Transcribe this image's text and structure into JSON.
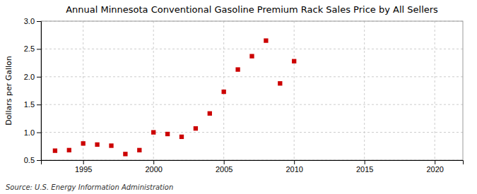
{
  "chart_data": {
    "type": "scatter",
    "title": "Annual Minnesota Conventional Gasoline Premium Rack Sales Price by All Sellers",
    "ylabel": "Dollars per Gallon",
    "source": "Source: U.S. Energy Information Administration",
    "x": [
      1993,
      1994,
      1995,
      1996,
      1997,
      1998,
      1999,
      2000,
      2001,
      2002,
      2003,
      2004,
      2005,
      2006,
      2007,
      2008,
      2009,
      2010
    ],
    "values": [
      0.67,
      0.68,
      0.8,
      0.78,
      0.76,
      0.61,
      0.68,
      1.0,
      0.97,
      0.92,
      1.07,
      1.34,
      1.73,
      2.13,
      2.37,
      2.65,
      1.88,
      2.28
    ],
    "color": "#cc0000",
    "marker": "square",
    "xlim": [
      1992,
      2022
    ],
    "ylim": [
      0.5,
      3.0
    ],
    "xticks": [
      1995,
      2000,
      2005,
      2010,
      2015,
      2020
    ],
    "yticks": [
      0.5,
      {
        "value": 1.0,
        "label": "1.0"
      },
      1.5,
      {
        "value": 2.0,
        "label": "2.0"
      },
      2.5,
      {
        "value": 3.0,
        "label": "3.0"
      }
    ],
    "grid": true
  }
}
